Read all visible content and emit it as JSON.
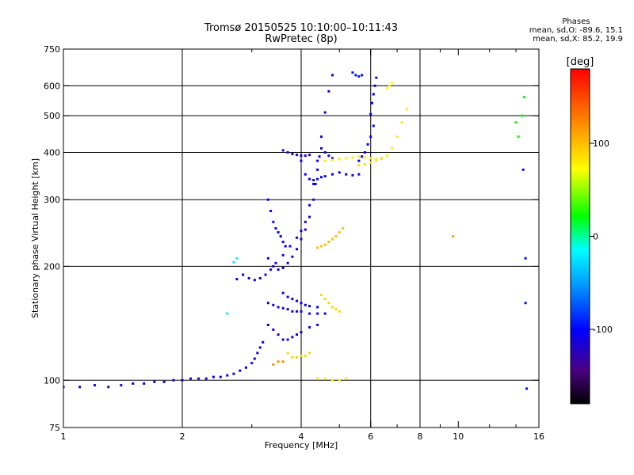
{
  "header": {
    "title_line1": "Tromsø 20150525 10:10:00–10:11:43",
    "title_line2": "RwPretec (8p)"
  },
  "phases": {
    "title": "Phases",
    "line_o": "mean, sd,O: -89.6, 15.1",
    "line_x": "mean, sd,X:  85.2, 19.9"
  },
  "chart_data": {
    "type": "scatter",
    "title": "Tromsø 20150525 10:10:00–10:11:43",
    "subtitle": "RwPretec (8p)",
    "xlabel": "Frequency [MHz]",
    "ylabel": "Stationary phase Virtual Height [km]",
    "x_scale": "log",
    "y_scale": "log",
    "xlim": [
      1,
      16
    ],
    "ylim": [
      75,
      750
    ],
    "x_ticks": [
      1,
      2,
      4,
      6,
      8,
      10,
      16
    ],
    "x_tick_labels": [
      "1",
      "2",
      "4",
      "6",
      "8",
      "10",
      "16"
    ],
    "x_grid_major": [
      2,
      4,
      6,
      8
    ],
    "x_minor_ticks": [
      3,
      5,
      7,
      9,
      12,
      14
    ],
    "y_ticks": [
      75,
      100,
      200,
      300,
      400,
      500,
      600,
      750
    ],
    "y_tick_labels": [
      "75",
      "100",
      "200",
      "300",
      "400",
      "500",
      "600",
      "750"
    ],
    "y_grid_major": [
      100,
      200,
      300,
      400,
      500,
      600
    ],
    "grid": true,
    "colorbar": {
      "label": "[deg]",
      "range": [
        -180,
        180
      ],
      "ticks": [
        100,
        0,
        -100
      ],
      "tick_labels": [
        "100",
        "0",
        "-100"
      ]
    },
    "series": [
      {
        "points": [
          [
            1.0,
            96
          ],
          [
            1.1,
            96
          ],
          [
            1.2,
            97
          ],
          [
            1.3,
            96
          ],
          [
            1.4,
            97
          ],
          [
            1.5,
            98
          ],
          [
            1.6,
            98
          ],
          [
            1.7,
            99
          ],
          [
            1.8,
            99
          ],
          [
            1.9,
            100
          ],
          [
            2.0,
            100
          ],
          [
            2.1,
            101
          ],
          [
            2.2,
            101
          ],
          [
            2.3,
            101
          ],
          [
            2.4,
            102
          ],
          [
            2.5,
            102
          ],
          [
            2.6,
            103
          ],
          [
            2.7,
            104
          ],
          [
            2.8,
            106
          ],
          [
            2.9,
            108
          ],
          [
            3.0,
            111
          ],
          [
            3.05,
            114
          ],
          [
            3.1,
            118
          ],
          [
            3.15,
            122
          ],
          [
            3.2,
            126
          ]
        ],
        "phase": -110
      },
      {
        "points": [
          [
            2.75,
            185
          ],
          [
            2.85,
            190
          ],
          [
            2.95,
            186
          ],
          [
            3.05,
            184
          ],
          [
            3.15,
            186
          ],
          [
            3.25,
            190
          ],
          [
            3.35,
            196
          ],
          [
            3.45,
            204
          ],
          [
            3.6,
            214
          ],
          [
            3.75,
            226
          ],
          [
            3.9,
            238
          ],
          [
            4.0,
            248
          ],
          [
            4.1,
            262
          ],
          [
            4.2,
            290
          ],
          [
            4.3,
            330
          ],
          [
            4.4,
            380
          ],
          [
            4.5,
            440
          ],
          [
            4.6,
            510
          ],
          [
            4.7,
            580
          ],
          [
            4.8,
            640
          ]
        ],
        "phase": -110
      },
      {
        "points": [
          [
            3.3,
            210
          ],
          [
            3.4,
            200
          ],
          [
            3.5,
            196
          ],
          [
            3.6,
            198
          ],
          [
            3.7,
            204
          ],
          [
            3.8,
            212
          ],
          [
            3.9,
            222
          ],
          [
            4.0,
            236
          ],
          [
            4.1,
            250
          ],
          [
            4.2,
            270
          ],
          [
            4.3,
            300
          ],
          [
            4.35,
            330
          ],
          [
            4.4,
            360
          ],
          [
            4.45,
            390
          ],
          [
            4.5,
            410
          ],
          [
            4.6,
            400
          ],
          [
            4.7,
            392
          ],
          [
            4.8,
            386
          ]
        ],
        "phase": -112
      },
      {
        "points": [
          [
            3.3,
            300
          ],
          [
            3.35,
            280
          ],
          [
            3.4,
            262
          ],
          [
            3.45,
            252
          ],
          [
            3.5,
            246
          ],
          [
            3.55,
            240
          ],
          [
            3.6,
            232
          ],
          [
            3.65,
            226
          ]
        ],
        "phase": -105
      },
      {
        "points": [
          [
            4.0,
            380
          ],
          [
            4.1,
            350
          ],
          [
            4.2,
            340
          ],
          [
            4.3,
            338
          ],
          [
            4.4,
            340
          ],
          [
            4.5,
            344
          ],
          [
            4.6,
            346
          ],
          [
            4.8,
            350
          ],
          [
            5.0,
            354
          ],
          [
            5.2,
            350
          ],
          [
            5.4,
            348
          ],
          [
            5.6,
            350
          ]
        ],
        "phase": -108
      },
      {
        "points": [
          [
            3.6,
            405
          ],
          [
            3.7,
            400
          ],
          [
            3.8,
            396
          ],
          [
            3.9,
            394
          ],
          [
            4.0,
            392
          ],
          [
            4.1,
            392
          ],
          [
            4.2,
            394
          ]
        ],
        "phase": -115
      },
      {
        "points": [
          [
            5.6,
            380
          ],
          [
            5.7,
            390
          ],
          [
            5.8,
            400
          ],
          [
            5.9,
            420
          ],
          [
            6.0,
            440
          ],
          [
            6.1,
            470
          ]
        ],
        "phase": -100
      },
      {
        "points": [
          [
            6.0,
            505
          ],
          [
            6.05,
            540
          ],
          [
            6.1,
            570
          ],
          [
            6.15,
            600
          ],
          [
            6.2,
            630
          ]
        ],
        "phase": -105
      },
      {
        "points": [
          [
            5.4,
            650
          ],
          [
            5.5,
            640
          ],
          [
            5.6,
            635
          ],
          [
            5.7,
            640
          ]
        ],
        "phase": -95
      },
      {
        "points": [
          [
            3.3,
            160
          ],
          [
            3.4,
            158
          ],
          [
            3.5,
            156
          ],
          [
            3.6,
            155
          ],
          [
            3.7,
            154
          ],
          [
            3.8,
            152
          ],
          [
            3.9,
            152
          ],
          [
            4.0,
            152
          ],
          [
            4.2,
            150
          ],
          [
            4.4,
            150
          ],
          [
            4.6,
            150
          ]
        ],
        "phase": -108
      },
      {
        "points": [
          [
            3.3,
            140
          ],
          [
            3.4,
            136
          ],
          [
            3.5,
            132
          ],
          [
            3.6,
            128
          ],
          [
            3.7,
            128
          ],
          [
            3.8,
            130
          ],
          [
            3.9,
            132
          ],
          [
            4.0,
            134
          ],
          [
            4.2,
            138
          ],
          [
            4.4,
            140
          ]
        ],
        "phase": -112
      },
      {
        "points": [
          [
            3.6,
            170
          ],
          [
            3.7,
            166
          ],
          [
            3.8,
            164
          ],
          [
            3.9,
            162
          ],
          [
            4.0,
            160
          ],
          [
            4.1,
            158
          ],
          [
            4.2,
            157
          ],
          [
            4.4,
            156
          ]
        ],
        "phase": -105
      },
      {
        "points": [
          [
            4.6,
            380
          ],
          [
            4.8,
            382
          ],
          [
            5.0,
            384
          ],
          [
            5.2,
            386
          ],
          [
            5.4,
            388
          ],
          [
            5.6,
            390
          ],
          [
            5.8,
            388
          ],
          [
            6.0,
            386
          ],
          [
            6.2,
            384
          ],
          [
            6.4,
            386
          ],
          [
            6.6,
            392
          ],
          [
            6.8,
            410
          ],
          [
            7.0,
            440
          ],
          [
            7.2,
            480
          ],
          [
            7.4,
            520
          ]
        ],
        "phase": 80
      },
      {
        "points": [
          [
            5.6,
            370
          ],
          [
            5.8,
            372
          ],
          [
            6.0,
            376
          ],
          [
            6.2,
            380
          ],
          [
            6.4,
            385
          ]
        ],
        "phase": 85
      },
      {
        "points": [
          [
            4.4,
            224
          ],
          [
            4.5,
            226
          ],
          [
            4.6,
            228
          ],
          [
            4.7,
            232
          ],
          [
            4.8,
            236
          ],
          [
            4.9,
            240
          ],
          [
            5.0,
            246
          ],
          [
            5.1,
            252
          ]
        ],
        "phase": 100
      },
      {
        "points": [
          [
            4.5,
            168
          ],
          [
            4.6,
            164
          ],
          [
            4.7,
            160
          ],
          [
            4.8,
            156
          ],
          [
            4.9,
            154
          ],
          [
            5.0,
            152
          ]
        ],
        "phase": 88
      },
      {
        "points": [
          [
            3.7,
            118
          ],
          [
            3.8,
            115
          ],
          [
            3.9,
            115
          ],
          [
            4.0,
            116
          ],
          [
            4.1,
            116
          ],
          [
            4.2,
            118
          ]
        ],
        "phase": 90
      },
      {
        "points": [
          [
            3.4,
            110
          ],
          [
            3.5,
            112
          ],
          [
            3.6,
            112
          ]
        ],
        "phase": 120
      },
      {
        "points": [
          [
            4.4,
            101
          ],
          [
            4.6,
            101
          ],
          [
            4.8,
            100
          ],
          [
            5.0,
            100
          ],
          [
            5.2,
            101
          ]
        ],
        "phase": 80
      },
      {
        "points": [
          [
            6.6,
            590
          ],
          [
            6.7,
            600
          ],
          [
            6.8,
            610
          ]
        ],
        "phase": 70
      },
      {
        "points": [
          [
            9.7,
            240
          ]
        ],
        "phase": 110
      },
      {
        "points": [
          [
            14.0,
            480
          ],
          [
            14.5,
            500
          ],
          [
            14.2,
            440
          ],
          [
            14.7,
            560
          ]
        ],
        "phase": 20
      },
      {
        "points": [
          [
            14.6,
            360
          ],
          [
            14.8,
            210
          ],
          [
            14.8,
            160
          ],
          [
            14.9,
            95
          ]
        ],
        "phase": -95
      },
      {
        "points": [
          [
            2.7,
            205
          ],
          [
            2.75,
            210
          ],
          [
            2.6,
            150
          ]
        ],
        "phase": -20
      }
    ]
  }
}
